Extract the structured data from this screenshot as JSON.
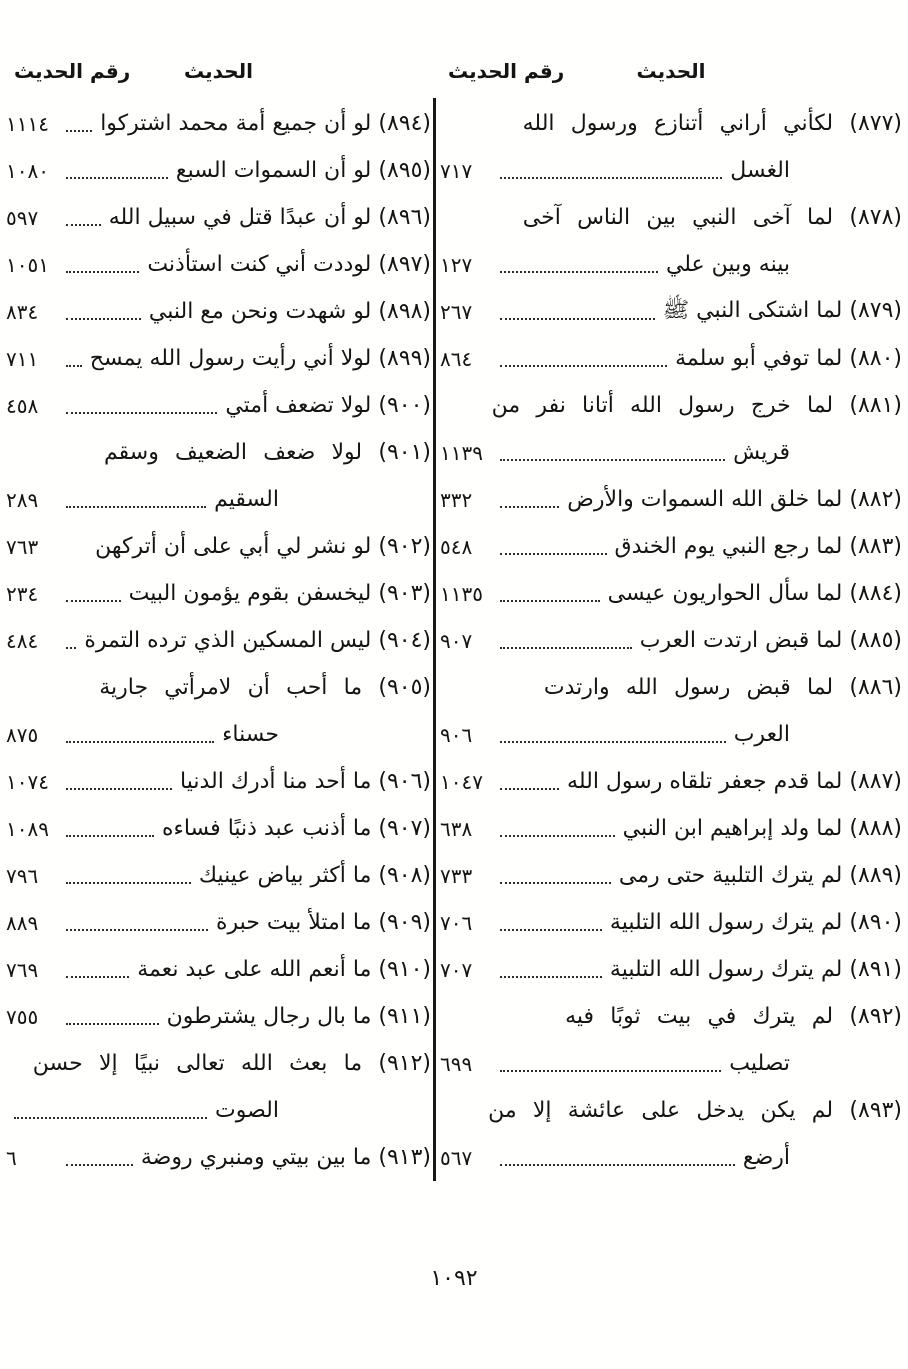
{
  "document": {
    "type": "hadith-index-scan",
    "folio_number": "١٠٩٢",
    "text_color": "#141414",
    "background_color": "#ffffff"
  },
  "headers": {
    "hadith": "الحديث",
    "hadith_number": "رقم الحديث"
  },
  "columns": [
    {
      "position": "right",
      "entries": [
        {
          "hadith_no": "877",
          "lines": [
            {
              "text": "(٨٧٧) لكأني أراني أتنازع ورسول الله"
            },
            {
              "text": "الغسل",
              "leader": true,
              "page": "٧١٧"
            }
          ]
        },
        {
          "hadith_no": "878",
          "lines": [
            {
              "text": "(٨٧٨) لما آخى النبي بين الناس آخى"
            },
            {
              "text": "بينه وبين علي",
              "leader": true,
              "page": "١٢٧"
            }
          ]
        },
        {
          "hadith_no": "879",
          "lines": [
            {
              "text": "(٨٧٩) لما اشتكى النبي ﷺ",
              "leader": true,
              "page": "٢٦٧"
            }
          ]
        },
        {
          "hadith_no": "880",
          "lines": [
            {
              "text": "(٨٨٠) لما توفي أبو سلمة",
              "leader": true,
              "page": "٨٦٤"
            }
          ]
        },
        {
          "hadith_no": "881",
          "lines": [
            {
              "text": "(٨٨١) لما خرج رسول الله أتانا نفر من"
            },
            {
              "text": "قريش",
              "leader": true,
              "page": "١١٣٩"
            }
          ]
        },
        {
          "hadith_no": "882",
          "lines": [
            {
              "text": "(٨٨٢) لما خلق الله السموات والأرض",
              "leader": true,
              "page": "٣٣٢"
            }
          ]
        },
        {
          "hadith_no": "883",
          "lines": [
            {
              "text": "(٨٨٣) لما رجع النبي يوم الخندق",
              "leader": true,
              "page": "٥٤٨"
            }
          ]
        },
        {
          "hadith_no": "884",
          "lines": [
            {
              "text": "(٨٨٤) لما سأل الحواريون عيسى",
              "leader": true,
              "page": "١١٣٥"
            }
          ]
        },
        {
          "hadith_no": "885",
          "lines": [
            {
              "text": "(٨٨٥) لما قبض ارتدت العرب",
              "leader": true,
              "page": "٩٠٧"
            }
          ]
        },
        {
          "hadith_no": "886",
          "lines": [
            {
              "text": "(٨٨٦) لما قبض رسول الله وارتدت"
            },
            {
              "text": "العرب",
              "leader": true,
              "page": "٩٠٦"
            }
          ]
        },
        {
          "hadith_no": "887",
          "lines": [
            {
              "text": "(٨٨٧) لما قدم جعفر تلقاه رسول الله",
              "leader": true,
              "page": "١٠٤٧"
            }
          ]
        },
        {
          "hadith_no": "888",
          "lines": [
            {
              "text": "(٨٨٨) لما ولد إبراهيم ابن النبي",
              "leader": true,
              "page": "٦٣٨"
            }
          ]
        },
        {
          "hadith_no": "889",
          "lines": [
            {
              "text": "(٨٨٩) لم يترك التلبية حتى رمى",
              "leader": true,
              "page": "٧٣٣"
            }
          ]
        },
        {
          "hadith_no": "890",
          "lines": [
            {
              "text": "(٨٩٠) لم يترك رسول الله التلبية",
              "leader": true,
              "page": "٧٠٦"
            }
          ]
        },
        {
          "hadith_no": "891",
          "lines": [
            {
              "text": "(٨٩١) لم يترك رسول الله التلبية",
              "leader": true,
              "page": "٧٠٧"
            }
          ]
        },
        {
          "hadith_no": "892",
          "lines": [
            {
              "text": "(٨٩٢) لم يترك في بيت ثوبًا فيه"
            },
            {
              "text": "تصليب",
              "leader": true,
              "page": "٦٩٩"
            }
          ]
        },
        {
          "hadith_no": "893",
          "lines": [
            {
              "text": "(٨٩٣) لم يكن يدخل على عائشة إلا من"
            },
            {
              "text": "أرضع",
              "leader": true,
              "page": "٥٦٧"
            }
          ]
        }
      ]
    },
    {
      "position": "left",
      "entries": [
        {
          "hadith_no": "894",
          "lines": [
            {
              "text": "(٨٩٤) لو أن جميع أمة محمد اشتركوا",
              "leader": true,
              "page": "١١١٤"
            }
          ]
        },
        {
          "hadith_no": "895",
          "lines": [
            {
              "text": "(٨٩٥) لو أن السموات السبع",
              "leader": true,
              "page": "١٠٨٠"
            }
          ]
        },
        {
          "hadith_no": "896",
          "lines": [
            {
              "text": "(٨٩٦) لو أن عبدًا قتل في سبيل الله",
              "leader": true,
              "page": "٥٩٧"
            }
          ]
        },
        {
          "hadith_no": "897",
          "lines": [
            {
              "text": "(٨٩٧) لوددت أني كنت استأذنت",
              "leader": true,
              "page": "١٠٥١"
            }
          ]
        },
        {
          "hadith_no": "898",
          "lines": [
            {
              "text": "(٨٩٨) لو شهدت ونحن مع النبي",
              "leader": true,
              "page": "٨٣٤"
            }
          ]
        },
        {
          "hadith_no": "899",
          "lines": [
            {
              "text": "(٨٩٩) لولا أني رأيت رسول الله يمسح",
              "leader": true,
              "page": "٧١١"
            }
          ]
        },
        {
          "hadith_no": "900",
          "lines": [
            {
              "text": "(٩٠٠) لولا تضعف أمتي",
              "leader": true,
              "page": "٤٥٨"
            }
          ]
        },
        {
          "hadith_no": "901",
          "lines": [
            {
              "text": "(٩٠١) لولا ضعف الضعيف وسقم"
            },
            {
              "text": "السقيم",
              "leader": true,
              "page": "٢٨٩"
            }
          ]
        },
        {
          "hadith_no": "902",
          "lines": [
            {
              "text": "(٩٠٢) لو نشر لي أبي على أن أتركهن",
              "page": "٧٦٣"
            }
          ]
        },
        {
          "hadith_no": "903",
          "lines": [
            {
              "text": "(٩٠٣) ليخسفن بقوم يؤمون البيت",
              "leader": true,
              "page": "٢٣٤"
            }
          ]
        },
        {
          "hadith_no": "904",
          "lines": [
            {
              "text": "(٩٠٤) ليس المسكين الذي ترده التمرة",
              "leader": true,
              "page": "٤٨٤"
            }
          ]
        },
        {
          "hadith_no": "905",
          "lines": [
            {
              "text": "(٩٠٥) ما أحب أن لامرأتي جارية"
            },
            {
              "text": "حسناء",
              "leader": true,
              "page": "٨٧٥"
            }
          ]
        },
        {
          "hadith_no": "906",
          "lines": [
            {
              "text": "(٩٠٦) ما أحد منا أدرك الدنيا",
              "leader": true,
              "page": "١٠٧٤"
            }
          ]
        },
        {
          "hadith_no": "907",
          "lines": [
            {
              "text": "(٩٠٧) ما أذنب عبد ذنبًا فساءه",
              "leader": true,
              "page": "١٠٨٩"
            }
          ]
        },
        {
          "hadith_no": "908",
          "lines": [
            {
              "text": "(٩٠٨) ما أكثر بياض عينيك",
              "leader": true,
              "page": "٧٩٦"
            }
          ]
        },
        {
          "hadith_no": "909",
          "lines": [
            {
              "text": "(٩٠٩) ما امتلأ بيت حبرة",
              "leader": true,
              "page": "٨٨٩"
            }
          ]
        },
        {
          "hadith_no": "910",
          "lines": [
            {
              "text": "(٩١٠) ما أنعم الله على عبد نعمة",
              "leader": true,
              "page": "٧٦٩"
            }
          ]
        },
        {
          "hadith_no": "911",
          "lines": [
            {
              "text": "(٩١١) ما بال رجال يشترطون",
              "leader": true,
              "page": "٧٥٥"
            }
          ]
        },
        {
          "hadith_no": "912",
          "lines": [
            {
              "text": "(٩١٢) ما بعث الله تعالى نبيًا إلا حسن"
            },
            {
              "text": "الصوت",
              "leader": true,
              "page": ""
            }
          ]
        },
        {
          "hadith_no": "913",
          "lines": [
            {
              "text": "(٩١٣) ما بين بيتي ومنبري روضة",
              "leader": true,
              "page": "٦"
            }
          ]
        }
      ]
    }
  ]
}
